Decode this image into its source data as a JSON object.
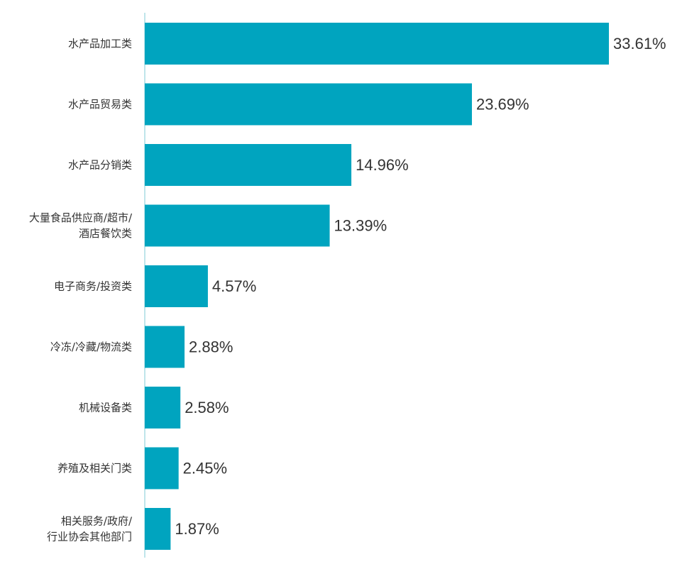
{
  "chart_data": {
    "type": "bar",
    "orientation": "horizontal",
    "categories": [
      [
        "水产品加工类"
      ],
      [
        "水产品贸易类"
      ],
      [
        "水产品分销类"
      ],
      [
        "大量食品供应商/超市/",
        "酒店餐饮类"
      ],
      [
        "电子商务/投资类"
      ],
      [
        "冷冻/冷藏/物流类"
      ],
      [
        "机械设备类"
      ],
      [
        "养殖及相关门类"
      ],
      [
        "相关服务/政府/",
        "行业协会其他部门"
      ]
    ],
    "values": [
      33.61,
      23.69,
      14.96,
      13.39,
      4.57,
      2.88,
      2.58,
      2.45,
      1.87
    ],
    "value_labels": [
      "33.61%",
      "23.69%",
      "14.96%",
      "13.39%",
      "4.57%",
      "2.88%",
      "2.58%",
      "2.45%",
      "1.87%"
    ],
    "unit": "%",
    "title": "",
    "xlabel": "",
    "ylabel": "",
    "xlim": [
      0,
      33.61
    ],
    "grid": false,
    "legend": "none",
    "colors": {
      "bar": "#00A4BF",
      "axis": "#7FCBD6",
      "text": "#333333"
    }
  }
}
